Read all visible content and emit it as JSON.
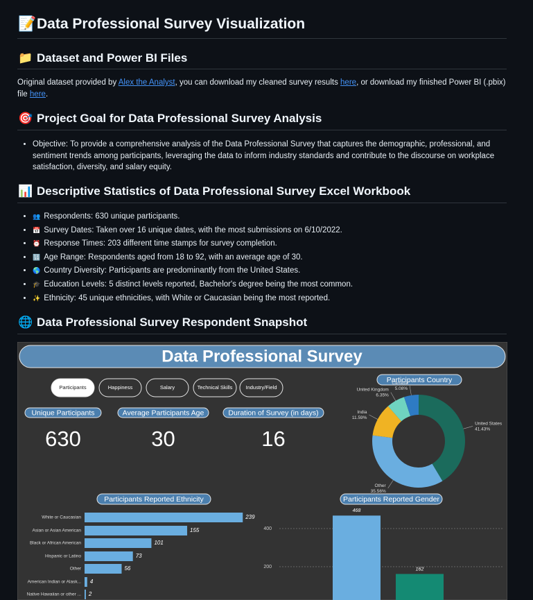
{
  "title": {
    "icon": "📝",
    "text": "Data Professional Survey Visualization"
  },
  "sections": [
    {
      "icon": "📁",
      "heading": "Dataset and Power BI Files",
      "paragraph": [
        {
          "text": "Original dataset provided by "
        },
        {
          "link": "Alex the Analyst"
        },
        {
          "text": ", you can download my cleaned survey results "
        },
        {
          "link": "here"
        },
        {
          "text": ", or download my finished Power BI (.pbix) file "
        },
        {
          "link": "here"
        },
        {
          "text": "."
        }
      ]
    },
    {
      "icon": "🎯",
      "heading": "Project Goal for Data Professional Survey Analysis",
      "bullets": [
        {
          "text": "Objective: To provide a comprehensive analysis of the Data Professional Survey that captures the demographic, professional, and sentiment trends among participants, leveraging the data to inform industry standards and contribute to the discourse on workplace satisfaction, diversity, and salary equity."
        }
      ]
    },
    {
      "icon": "📊",
      "heading": "Descriptive Statistics of Data Professional Survey Excel Workbook",
      "bullets": [
        {
          "icon": "👥",
          "text": "Respondents: 630 unique participants."
        },
        {
          "icon": "📅",
          "text": "Survey Dates: Taken over 16 unique dates, with the most submissions on 6/10/2022."
        },
        {
          "icon": "⏰",
          "text": "Response Times: 203 different time stamps for survey completion."
        },
        {
          "icon": "🔢",
          "text": "Age Range: Respondents aged from 18 to 92, with an average age of 30."
        },
        {
          "icon": "🌎",
          "text": "Country Diversity: Participants are predominantly from the United States."
        },
        {
          "icon": "🎓",
          "text": "Education Levels: 5 distinct levels reported, Bachelor's degree being the most common."
        },
        {
          "icon": "✨",
          "text": "Ethnicity: 45 unique ethnicities, with White or Caucasian being the most reported."
        }
      ]
    },
    {
      "icon": "🌐",
      "heading": "Data Professional Survey Respondent Snapshot"
    }
  ],
  "dashboard": {
    "title": "Data Professional Survey",
    "tabs": [
      "Participants",
      "Happiness",
      "Salary",
      "Technical Skills",
      "Industry/Field"
    ],
    "kpis": [
      {
        "label": "Unique Participants",
        "value": 630
      },
      {
        "label": "Average Participants Age",
        "value": 30
      },
      {
        "label": "Duration of Survey (in days)",
        "value": 16
      }
    ]
  },
  "chart_data": [
    {
      "type": "pie",
      "title": "Participants Country",
      "categories": [
        "United States",
        "Other",
        "India",
        "United Kingdom",
        "Canada"
      ],
      "values": [
        41.43,
        35.56,
        11.59,
        6.35,
        5.08
      ],
      "value_labels": [
        "41.43%",
        "35.56%",
        "11.59%",
        "6.35%",
        "5.08%"
      ],
      "colors": [
        "#1b6b5c",
        "#6aaee0",
        "#f0b323",
        "#6fd4c0",
        "#2e7bc4"
      ]
    },
    {
      "type": "hbar",
      "title": "Participants Reported Ethnicity",
      "categories": [
        "White or Caucasian",
        "Asian or Asian American",
        "Black or African American",
        "Hispanic or Latino",
        "Other",
        "American Indian or Alask...",
        "Native Hawaiian or other ..."
      ],
      "values": [
        239,
        155,
        101,
        73,
        56,
        4,
        2
      ],
      "color": "#6aaee0"
    },
    {
      "type": "bar",
      "title": "Participants Reported Gender",
      "categories": [
        null,
        null
      ],
      "values": [
        468,
        162
      ],
      "colors": [
        "#6aaee0",
        "#148a73"
      ],
      "ylim": [
        0,
        500
      ],
      "yticks": [
        200,
        400
      ],
      "grid": true
    }
  ]
}
